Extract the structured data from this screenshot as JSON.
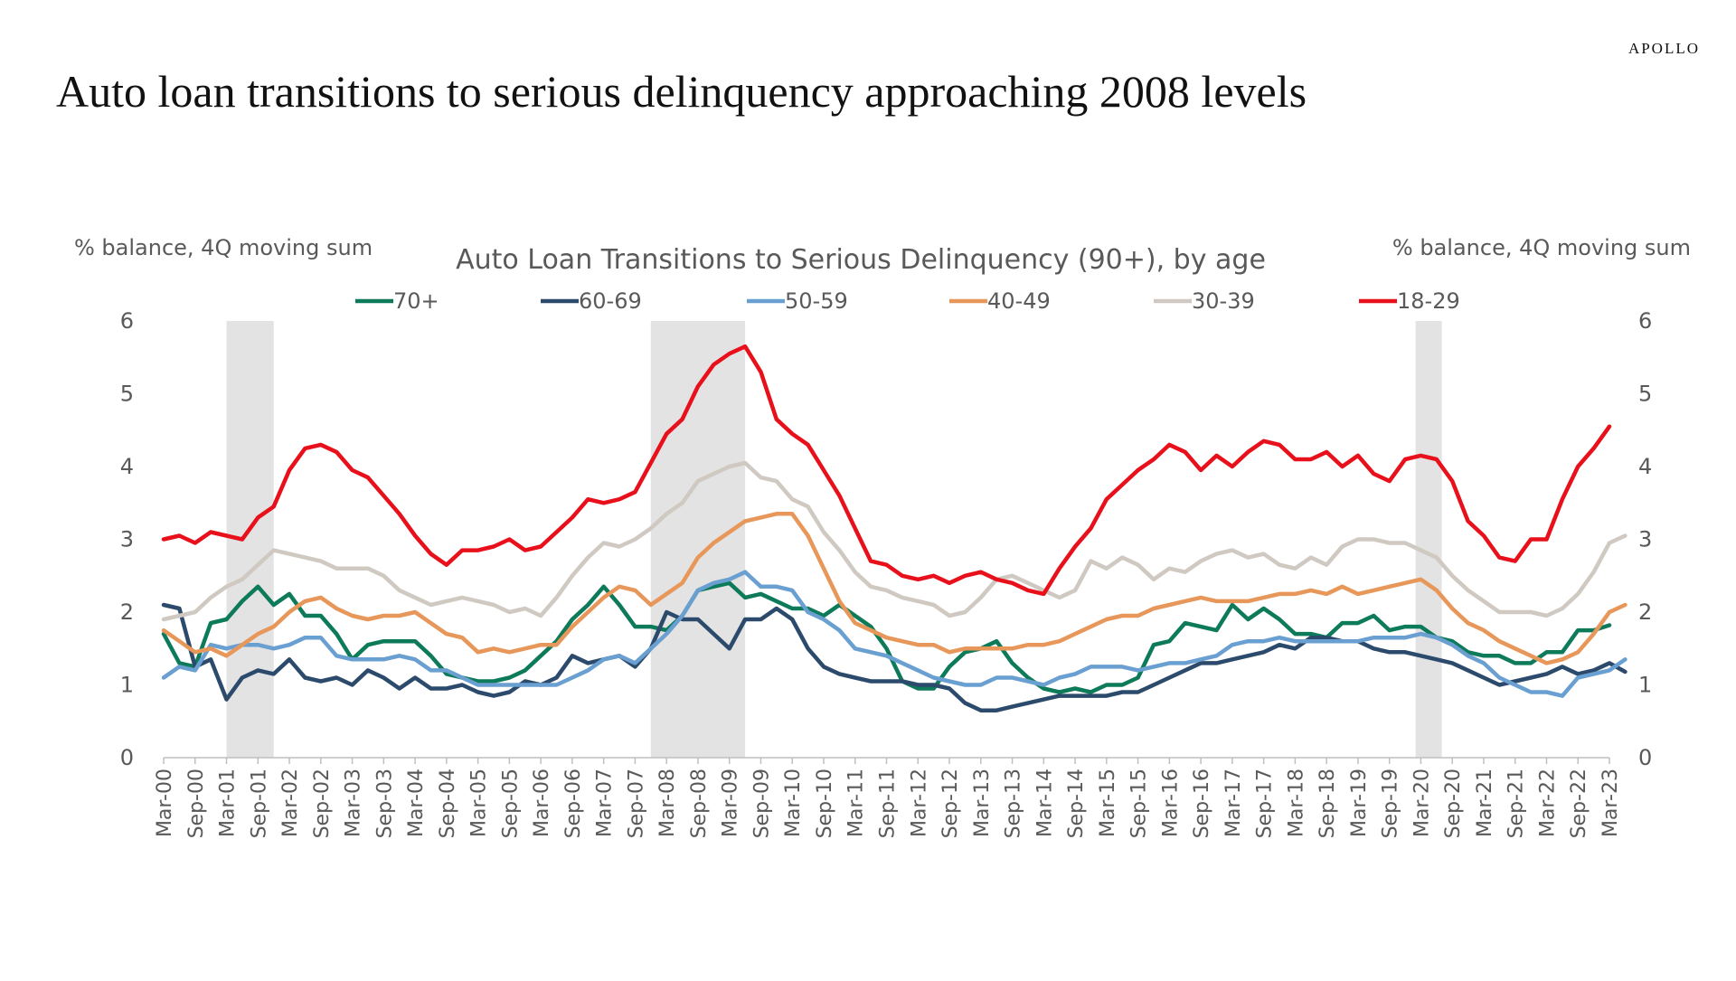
{
  "brand": "APOLLO",
  "title": "Auto loan transitions to serious delinquency approaching 2008 levels",
  "chart_data": {
    "type": "line",
    "title": "Auto Loan Transitions to Serious Delinquency (90+), by age",
    "ylabel_left": "% balance, 4Q moving sum",
    "ylabel_right": "% balance, 4Q moving sum",
    "ylim": [
      0,
      6
    ],
    "yticks": [
      0,
      1,
      2,
      3,
      4,
      5,
      6
    ],
    "x_tick_labels": [
      "Mar-00",
      "Sep-00",
      "Mar-01",
      "Sep-01",
      "Mar-02",
      "Sep-02",
      "Mar-03",
      "Sep-03",
      "Mar-04",
      "Sep-04",
      "Mar-05",
      "Sep-05",
      "Mar-06",
      "Sep-06",
      "Mar-07",
      "Sep-07",
      "Mar-08",
      "Sep-08",
      "Mar-09",
      "Sep-09",
      "Mar-10",
      "Sep-10",
      "Mar-11",
      "Sep-11",
      "Mar-12",
      "Sep-12",
      "Mar-13",
      "Sep-13",
      "Mar-14",
      "Sep-14",
      "Mar-15",
      "Sep-15",
      "Mar-16",
      "Sep-16",
      "Mar-17",
      "Sep-17",
      "Mar-18",
      "Sep-18",
      "Mar-19",
      "Sep-19",
      "Mar-20",
      "Sep-20",
      "Mar-21",
      "Sep-21",
      "Mar-22",
      "Sep-22",
      "Mar-23"
    ],
    "recessions": [
      [
        "Mar-01",
        "Dec-01"
      ],
      [
        "Dec-07",
        "Jun-09"
      ],
      [
        "Feb-20",
        "Jul-20"
      ]
    ],
    "recession_color": "#e3e3e3",
    "legend_position": "top",
    "series": [
      {
        "name": "70+",
        "color": "#0d7a5a",
        "values": [
          1.7,
          1.3,
          1.25,
          1.85,
          1.9,
          2.15,
          2.35,
          2.1,
          2.25,
          1.95,
          1.95,
          1.7,
          1.35,
          1.55,
          1.6,
          1.6,
          1.6,
          1.4,
          1.15,
          1.1,
          1.05,
          1.05,
          1.1,
          1.2,
          1.4,
          1.6,
          1.9,
          2.1,
          2.35,
          2.1,
          1.8,
          1.8,
          1.75,
          1.95,
          2.3,
          2.35,
          2.4,
          2.2,
          2.25,
          2.15,
          2.05,
          2.05,
          1.95,
          2.1,
          1.95,
          1.8,
          1.5,
          1.05,
          0.95,
          0.95,
          1.25,
          1.45,
          1.5,
          1.6,
          1.3,
          1.1,
          0.95,
          0.9,
          0.95,
          0.9,
          1.0,
          1.0,
          1.1,
          1.55,
          1.6,
          1.85,
          1.8,
          1.75,
          2.1,
          1.9,
          2.05,
          1.9,
          1.7,
          1.7,
          1.65,
          1.85,
          1.85,
          1.95,
          1.75,
          1.8,
          1.8,
          1.65,
          1.6,
          1.45,
          1.4,
          1.4,
          1.3,
          1.3,
          1.45,
          1.45,
          1.75,
          1.75,
          1.82
        ]
      },
      {
        "name": "60-69",
        "color": "#2c4a6b",
        "values": [
          2.1,
          2.05,
          1.25,
          1.35,
          0.8,
          1.1,
          1.2,
          1.15,
          1.35,
          1.1,
          1.05,
          1.1,
          1.0,
          1.2,
          1.1,
          0.95,
          1.1,
          0.95,
          0.95,
          1.0,
          0.9,
          0.85,
          0.9,
          1.05,
          1.0,
          1.1,
          1.4,
          1.3,
          1.35,
          1.4,
          1.25,
          1.5,
          2.0,
          1.9,
          1.9,
          1.7,
          1.5,
          1.9,
          1.9,
          2.05,
          1.9,
          1.5,
          1.25,
          1.15,
          1.1,
          1.05,
          1.05,
          1.05,
          1.0,
          1.0,
          0.95,
          0.75,
          0.65,
          0.65,
          0.7,
          0.75,
          0.8,
          0.85,
          0.85,
          0.85,
          0.85,
          0.9,
          0.9,
          1.0,
          1.1,
          1.2,
          1.3,
          1.3,
          1.35,
          1.4,
          1.45,
          1.55,
          1.5,
          1.65,
          1.65,
          1.6,
          1.6,
          1.5,
          1.45,
          1.45,
          1.4,
          1.35,
          1.3,
          1.2,
          1.1,
          1.0,
          1.05,
          1.1,
          1.15,
          1.25,
          1.15,
          1.2,
          1.3,
          1.18
        ]
      },
      {
        "name": "50-59",
        "color": "#6a9fd1",
        "values": [
          1.1,
          1.25,
          1.2,
          1.55,
          1.5,
          1.55,
          1.55,
          1.5,
          1.55,
          1.65,
          1.65,
          1.4,
          1.35,
          1.35,
          1.35,
          1.4,
          1.35,
          1.2,
          1.2,
          1.1,
          1.0,
          1.0,
          1.0,
          1.0,
          1.0,
          1.0,
          1.1,
          1.2,
          1.35,
          1.4,
          1.3,
          1.5,
          1.7,
          1.95,
          2.3,
          2.4,
          2.45,
          2.55,
          2.35,
          2.35,
          2.3,
          2.0,
          1.9,
          1.75,
          1.5,
          1.45,
          1.4,
          1.3,
          1.2,
          1.1,
          1.05,
          1.0,
          1.0,
          1.1,
          1.1,
          1.05,
          1.0,
          1.1,
          1.15,
          1.25,
          1.25,
          1.25,
          1.2,
          1.25,
          1.3,
          1.3,
          1.35,
          1.4,
          1.55,
          1.6,
          1.6,
          1.65,
          1.6,
          1.6,
          1.6,
          1.6,
          1.6,
          1.65,
          1.65,
          1.65,
          1.7,
          1.65,
          1.55,
          1.4,
          1.3,
          1.1,
          1.0,
          0.9,
          0.9,
          0.85,
          1.1,
          1.15,
          1.2,
          1.35
        ]
      },
      {
        "name": "40-49",
        "color": "#e8975a",
        "values": [
          1.75,
          1.6,
          1.45,
          1.5,
          1.4,
          1.55,
          1.7,
          1.8,
          2.0,
          2.15,
          2.2,
          2.05,
          1.95,
          1.9,
          1.95,
          1.95,
          2.0,
          1.85,
          1.7,
          1.65,
          1.45,
          1.5,
          1.45,
          1.5,
          1.55,
          1.55,
          1.8,
          2.0,
          2.2,
          2.35,
          2.3,
          2.1,
          2.25,
          2.4,
          2.75,
          2.95,
          3.1,
          3.25,
          3.3,
          3.35,
          3.35,
          3.05,
          2.6,
          2.15,
          1.85,
          1.75,
          1.65,
          1.6,
          1.55,
          1.55,
          1.45,
          1.5,
          1.5,
          1.5,
          1.5,
          1.55,
          1.55,
          1.6,
          1.7,
          1.8,
          1.9,
          1.95,
          1.95,
          2.05,
          2.1,
          2.15,
          2.2,
          2.15,
          2.15,
          2.15,
          2.2,
          2.25,
          2.25,
          2.3,
          2.25,
          2.35,
          2.25,
          2.3,
          2.35,
          2.4,
          2.45,
          2.3,
          2.05,
          1.85,
          1.75,
          1.6,
          1.5,
          1.4,
          1.3,
          1.35,
          1.45,
          1.7,
          2.0,
          2.1
        ]
      },
      {
        "name": "30-39",
        "color": "#cfc9c2",
        "values": [
          1.9,
          1.95,
          2.0,
          2.2,
          2.35,
          2.45,
          2.65,
          2.85,
          2.8,
          2.75,
          2.7,
          2.6,
          2.6,
          2.6,
          2.5,
          2.3,
          2.2,
          2.1,
          2.15,
          2.2,
          2.15,
          2.1,
          2.0,
          2.05,
          1.95,
          2.2,
          2.5,
          2.75,
          2.95,
          2.9,
          3.0,
          3.15,
          3.35,
          3.5,
          3.8,
          3.9,
          4.0,
          4.05,
          3.85,
          3.8,
          3.55,
          3.45,
          3.1,
          2.85,
          2.55,
          2.35,
          2.3,
          2.2,
          2.15,
          2.1,
          1.95,
          2.0,
          2.2,
          2.45,
          2.5,
          2.4,
          2.3,
          2.2,
          2.3,
          2.7,
          2.6,
          2.75,
          2.65,
          2.45,
          2.6,
          2.55,
          2.7,
          2.8,
          2.85,
          2.75,
          2.8,
          2.65,
          2.6,
          2.75,
          2.65,
          2.9,
          3.0,
          3.0,
          2.95,
          2.95,
          2.85,
          2.75,
          2.5,
          2.3,
          2.15,
          2.0,
          2.0,
          2.0,
          1.95,
          2.05,
          2.25,
          2.55,
          2.95,
          3.05
        ]
      },
      {
        "name": "18-29",
        "color": "#e8101a",
        "values": [
          3.0,
          3.05,
          2.95,
          3.1,
          3.05,
          3.0,
          3.3,
          3.45,
          3.95,
          4.25,
          4.3,
          4.2,
          3.95,
          3.85,
          3.6,
          3.35,
          3.05,
          2.8,
          2.65,
          2.85,
          2.85,
          2.9,
          3.0,
          2.85,
          2.9,
          3.1,
          3.3,
          3.55,
          3.5,
          3.55,
          3.65,
          4.05,
          4.45,
          4.65,
          5.1,
          5.4,
          5.55,
          5.65,
          5.3,
          4.65,
          4.45,
          4.3,
          3.95,
          3.6,
          3.15,
          2.7,
          2.65,
          2.5,
          2.45,
          2.5,
          2.4,
          2.5,
          2.55,
          2.45,
          2.4,
          2.3,
          2.25,
          2.6,
          2.9,
          3.15,
          3.55,
          3.75,
          3.95,
          4.1,
          4.3,
          4.2,
          3.95,
          4.15,
          4.0,
          4.2,
          4.35,
          4.3,
          4.1,
          4.1,
          4.2,
          4.0,
          4.15,
          3.9,
          3.8,
          4.1,
          4.15,
          4.1,
          3.8,
          3.25,
          3.05,
          2.75,
          2.7,
          3.0,
          3.0,
          3.55,
          4.0,
          4.25,
          4.55
        ]
      }
    ]
  }
}
